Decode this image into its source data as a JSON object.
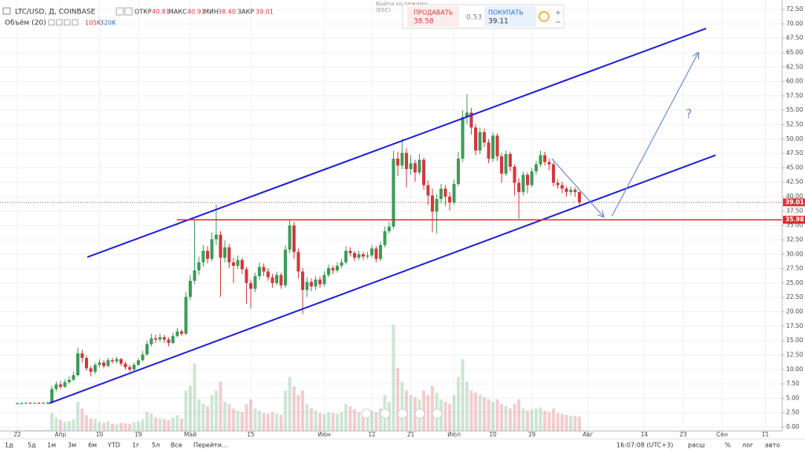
{
  "header": {
    "symbol": "LTC/USD, Д, COINBASE",
    "ohlc": [
      {
        "label": "ОТКР",
        "value": "40.81"
      },
      {
        "label": "МАКС",
        "value": "40.91"
      },
      {
        "label": "МИН",
        "value": "38.40"
      },
      {
        "label": "ЗАКР",
        "value": "39.01"
      }
    ],
    "volume_legend": {
      "label": "Объём (20)",
      "ma": "105K",
      "volume": "320K"
    }
  },
  "trade": {
    "tooltip": [
      "Выйти из режима",
      "(ESC)"
    ],
    "sell_label": "ПРОДАВАТЬ",
    "sell": "38.58",
    "spread": "0.53",
    "buy_label": "ПОКУПАТЬ",
    "buy": "39.11"
  },
  "toolbar": {
    "ranges": [
      "1д",
      "5д",
      "1м",
      "3м",
      "6м",
      "YTD",
      "1г",
      "5л",
      "Все",
      "Перейти..."
    ],
    "clock": "16:07:08 (UTC+3)",
    "options": [
      "расш",
      "%",
      "лог",
      "авто"
    ]
  },
  "chart_data": {
    "type": "candlestick",
    "up_color": "#3d9b57",
    "down_color": "#d2393c",
    "grid": true,
    "xlim": [
      -4,
      176.9
    ],
    "ylim": [
      -0.68,
      74.14
    ],
    "xticks": [
      {
        "value": 0,
        "label": "22"
      },
      {
        "value": 10,
        "label": "Апр"
      },
      {
        "value": 19,
        "label": "10"
      },
      {
        "value": 28,
        "label": "19"
      },
      {
        "value": 40,
        "label": "Май"
      },
      {
        "value": 54,
        "label": "15"
      },
      {
        "value": 71,
        "label": "Июн"
      },
      {
        "value": 82,
        "label": "12"
      },
      {
        "value": 91,
        "label": "21"
      },
      {
        "value": 101,
        "label": "Июл"
      },
      {
        "value": 110,
        "label": "10"
      },
      {
        "value": 119,
        "label": "19"
      },
      {
        "value": 132,
        "label": "Авг"
      },
      {
        "value": 145,
        "label": "14"
      },
      {
        "value": 154,
        "label": "23"
      },
      {
        "value": 163,
        "label": "Сен"
      },
      {
        "value": 173,
        "label": "11"
      }
    ],
    "yticks": [
      {
        "value": 0,
        "label": "0.00"
      },
      {
        "value": 2.5,
        "label": "2.50"
      },
      {
        "value": 5,
        "label": "5.00"
      },
      {
        "value": 7.5,
        "label": "7.50"
      },
      {
        "value": 10,
        "label": "10.00"
      },
      {
        "value": 12.5,
        "label": "12.50"
      },
      {
        "value": 15,
        "label": "15.00"
      },
      {
        "value": 17.5,
        "label": "17.50"
      },
      {
        "value": 20,
        "label": "20.00"
      },
      {
        "value": 22.5,
        "label": "22.50"
      },
      {
        "value": 25,
        "label": "25.00"
      },
      {
        "value": 27.5,
        "label": "27.50"
      },
      {
        "value": 30,
        "label": "30.00"
      },
      {
        "value": 32.5,
        "label": "32.50"
      },
      {
        "value": 35,
        "label": "35.00"
      },
      {
        "value": 37.5,
        "label": "37.50"
      },
      {
        "value": 40,
        "label": "40.00"
      },
      {
        "value": 42.5,
        "label": "42.50"
      },
      {
        "value": 45,
        "label": "45.00"
      },
      {
        "value": 47.5,
        "label": "47.50"
      },
      {
        "value": 50,
        "label": "50.00"
      },
      {
        "value": 52.5,
        "label": "52.50"
      },
      {
        "value": 55,
        "label": "55.00"
      },
      {
        "value": 57.5,
        "label": "57.50"
      },
      {
        "value": 60,
        "label": "60.00"
      },
      {
        "value": 62.5,
        "label": "62.50"
      },
      {
        "value": 65,
        "label": "65.00"
      },
      {
        "value": 67.5,
        "label": "67.50"
      },
      {
        "value": 70,
        "label": "70.00"
      },
      {
        "value": 72.5,
        "label": "72.50"
      }
    ],
    "x": [
      0,
      1,
      2,
      3,
      4,
      5,
      6,
      7,
      8,
      9,
      10,
      11,
      12,
      13,
      14,
      15,
      16,
      17,
      18,
      19,
      20,
      21,
      22,
      23,
      24,
      25,
      26,
      27,
      28,
      29,
      30,
      31,
      32,
      33,
      34,
      35,
      36,
      37,
      38,
      39,
      40,
      41,
      42,
      43,
      44,
      45,
      46,
      47,
      48,
      49,
      50,
      51,
      52,
      53,
      54,
      55,
      56,
      57,
      58,
      59,
      60,
      61,
      62,
      63,
      64,
      65,
      66,
      67,
      68,
      69,
      70,
      71,
      72,
      73,
      74,
      75,
      76,
      77,
      78,
      79,
      80,
      81,
      82,
      83,
      84,
      85,
      86,
      87,
      88,
      89,
      90,
      91,
      92,
      93,
      94,
      95,
      96,
      97,
      98,
      99,
      100,
      101,
      102,
      103,
      104,
      105,
      106,
      107,
      108,
      109,
      110,
      111,
      112,
      113,
      114,
      115,
      116,
      117,
      118,
      119,
      120,
      121,
      122,
      123,
      124,
      125,
      126,
      127,
      128,
      129,
      130
    ],
    "open": [
      4.1,
      4.1,
      4.1,
      4.2,
      4.1,
      4.2,
      4.1,
      4.2,
      4.2,
      6.6,
      7.4,
      7.0,
      7.8,
      8.2,
      9.0,
      12.8,
      12.0,
      10.2,
      9.6,
      10.8,
      11.2,
      10.6,
      11.6,
      11.4,
      11.8,
      11.0,
      10.4,
      10.0,
      10.8,
      11.6,
      12.6,
      14.4,
      15.4,
      15.2,
      15.6,
      15.2,
      14.6,
      15.8,
      16.6,
      16.2,
      22.6,
      25.4,
      27.2,
      28.6,
      30.6,
      29.2,
      32.6,
      33.4,
      29.4,
      31.2,
      28.6,
      28.0,
      29.0,
      27.4,
      25.0,
      24.0,
      26.2,
      27.8,
      27.0,
      26.0,
      25.0,
      26.4,
      24.6,
      30.8,
      35.0,
      30.4,
      27.0,
      23.8,
      25.2,
      24.4,
      25.6,
      24.8,
      26.4,
      27.6,
      27.2,
      28.0,
      28.6,
      30.6,
      30.2,
      29.4,
      30.0,
      29.6,
      29.8,
      31.0,
      29.2,
      31.6,
      34.0,
      34.8,
      46.6,
      45.4,
      47.6,
      44.8,
      45.8,
      44.2,
      46.4,
      42.0,
      40.2,
      37.4,
      39.6,
      41.4,
      40.0,
      39.0,
      42.2,
      46.6,
      53.8,
      54.6,
      52.0,
      48.0,
      51.2,
      49.4,
      46.6,
      50.6,
      47.0,
      44.0,
      47.4,
      45.2,
      42.4,
      40.8,
      43.8,
      42.0,
      44.4,
      45.6,
      47.2,
      46.0,
      45.6,
      42.4,
      42.0,
      41.4,
      40.8,
      41.2,
      40.81
    ],
    "high": [
      4.3,
      4.3,
      4.3,
      4.3,
      4.3,
      4.3,
      4.3,
      4.4,
      7.2,
      7.9,
      8.0,
      8.3,
      8.8,
      9.6,
      13.8,
      13.4,
      12.4,
      10.6,
      11.2,
      11.8,
      11.6,
      12.0,
      12.0,
      12.2,
      12.0,
      11.4,
      10.8,
      11.2,
      12.0,
      13.2,
      15.0,
      16.2,
      16.0,
      16.2,
      16.0,
      15.6,
      16.4,
      17.2,
      17.0,
      23.4,
      26.4,
      36.0,
      29.6,
      31.6,
      31.4,
      33.8,
      38.6,
      34.0,
      32.4,
      31.8,
      29.4,
      29.8,
      29.4,
      27.8,
      25.6,
      26.8,
      28.6,
      28.4,
      27.6,
      26.6,
      27.0,
      26.8,
      31.6,
      36.0,
      35.6,
      31.0,
      27.6,
      26.0,
      25.8,
      26.2,
      26.2,
      27.0,
      28.2,
      28.0,
      28.6,
      29.2,
      31.4,
      31.2,
      30.6,
      30.6,
      30.4,
      30.4,
      31.6,
      31.4,
      32.2,
      34.8,
      35.6,
      48.0,
      47.8,
      50.0,
      48.4,
      47.2,
      46.4,
      47.4,
      46.8,
      42.8,
      41.4,
      40.4,
      42.2,
      42.0,
      40.8,
      43.0,
      47.8,
      55.0,
      57.8,
      55.4,
      52.6,
      52.0,
      51.8,
      50.0,
      51.2,
      51.0,
      47.6,
      48.0,
      47.8,
      45.6,
      43.2,
      44.4,
      44.2,
      45.0,
      46.2,
      48.0,
      47.8,
      46.6,
      46.0,
      43.0,
      42.6,
      41.8,
      41.8,
      41.6,
      40.91
    ],
    "low": [
      4.0,
      4.0,
      4.0,
      4.0,
      4.0,
      4.0,
      4.0,
      4.0,
      4.1,
      6.2,
      6.6,
      6.8,
      7.5,
      8.0,
      8.8,
      11.2,
      9.8,
      8.8,
      9.2,
      10.4,
      10.2,
      10.4,
      11.0,
      11.0,
      10.6,
      10.0,
      9.6,
      9.8,
      10.6,
      11.4,
      12.4,
      14.0,
      14.6,
      14.8,
      14.6,
      14.0,
      14.4,
      15.6,
      15.8,
      16.0,
      22.0,
      24.8,
      26.4,
      27.8,
      28.4,
      28.8,
      31.6,
      22.6,
      28.6,
      27.6,
      25.0,
      27.4,
      26.6,
      21.4,
      20.6,
      23.4,
      25.6,
      26.2,
      25.4,
      24.2,
      24.6,
      24.0,
      24.2,
      30.2,
      29.2,
      25.8,
      19.6,
      22.6,
      23.6,
      23.8,
      24.2,
      24.4,
      26.0,
      26.6,
      26.8,
      27.6,
      28.2,
      29.6,
      28.8,
      29.0,
      29.0,
      29.2,
      29.4,
      28.6,
      28.8,
      31.2,
      33.6,
      34.4,
      43.6,
      44.8,
      41.6,
      43.8,
      42.6,
      43.8,
      41.2,
      38.6,
      33.8,
      33.6,
      38.8,
      38.4,
      37.6,
      38.6,
      41.8,
      46.0,
      52.6,
      50.8,
      47.2,
      47.4,
      48.6,
      45.8,
      46.0,
      46.2,
      42.4,
      43.6,
      44.4,
      40.2,
      36.2,
      40.2,
      40.6,
      41.6,
      43.8,
      45.2,
      45.4,
      44.6,
      41.8,
      41.4,
      40.6,
      40.0,
      40.2,
      40.0,
      38.4
    ],
    "close": [
      4.1,
      4.1,
      4.2,
      4.1,
      4.2,
      4.1,
      4.2,
      4.2,
      6.6,
      7.4,
      7.0,
      7.8,
      8.2,
      9.0,
      12.8,
      12.0,
      10.2,
      9.6,
      10.8,
      11.2,
      10.6,
      11.6,
      11.4,
      11.8,
      11.0,
      10.4,
      10.0,
      10.8,
      11.6,
      12.6,
      14.4,
      15.4,
      15.2,
      15.6,
      15.2,
      14.6,
      15.8,
      16.6,
      16.2,
      22.6,
      25.4,
      27.2,
      28.6,
      30.6,
      29.2,
      32.6,
      33.4,
      29.4,
      31.2,
      28.6,
      28.0,
      29.0,
      27.4,
      25.0,
      24.0,
      26.2,
      27.8,
      27.0,
      26.0,
      25.0,
      26.4,
      24.6,
      30.8,
      35.0,
      30.4,
      27.0,
      23.8,
      25.2,
      24.4,
      25.6,
      24.8,
      26.4,
      27.6,
      27.2,
      28.0,
      28.6,
      30.6,
      30.2,
      29.4,
      30.0,
      29.6,
      29.8,
      31.0,
      29.2,
      31.6,
      34.0,
      34.8,
      46.6,
      45.4,
      47.6,
      44.8,
      45.8,
      44.2,
      46.4,
      42.0,
      40.2,
      37.4,
      39.6,
      41.4,
      40.0,
      39.0,
      42.2,
      46.6,
      53.8,
      54.6,
      52.0,
      48.0,
      51.2,
      49.4,
      46.6,
      50.6,
      47.0,
      44.0,
      47.4,
      45.2,
      42.4,
      40.8,
      43.8,
      42.0,
      44.4,
      45.6,
      47.2,
      46.0,
      45.6,
      42.4,
      42.0,
      41.4,
      40.8,
      41.2,
      40.8,
      39.01
    ],
    "volume": [
      20,
      15,
      18,
      22,
      20,
      18,
      25,
      30,
      400,
      300,
      250,
      200,
      220,
      260,
      650,
      500,
      350,
      280,
      260,
      200,
      180,
      220,
      160,
      150,
      180,
      170,
      160,
      190,
      210,
      260,
      420,
      380,
      300,
      280,
      260,
      240,
      300,
      350,
      280,
      900,
      1000,
      1500,
      700,
      600,
      550,
      800,
      900,
      1100,
      650,
      600,
      500,
      450,
      420,
      600,
      700,
      500,
      450,
      400,
      380,
      420,
      380,
      360,
      900,
      1200,
      1000,
      800,
      900,
      600,
      500,
      450,
      400,
      380,
      420,
      400,
      380,
      420,
      600,
      550,
      480,
      420,
      400,
      380,
      450,
      420,
      500,
      800,
      650,
      2360,
      1400,
      1100,
      900,
      800,
      750,
      700,
      900,
      800,
      1000,
      850,
      700,
      650,
      600,
      800,
      1200,
      1600,
      1100,
      900,
      850,
      800,
      750,
      700,
      650,
      700,
      600,
      550,
      500,
      600,
      700,
      500,
      450,
      480,
      500,
      520,
      450,
      420,
      500,
      400,
      380,
      360,
      340,
      330,
      320
    ],
    "shapes": [
      {
        "shape": "line",
        "color": "#1f1fd6",
        "x": [
          16.2,
          159.3
        ],
        "y": [
          29.5,
          69.2
        ]
      },
      {
        "shape": "line",
        "color": "#1f1fd6",
        "x": [
          7.3,
          161.5
        ],
        "y": [
          4.1,
          47.2
        ]
      },
      {
        "shape": "hline",
        "color": "#e02424",
        "x": [
          36.9,
          176.9
        ],
        "y": [
          35.98,
          35.98
        ]
      },
      {
        "shape": "arrow",
        "color": "#6d8fcf",
        "x": [
          123.6,
          135.6
        ],
        "y": [
          46.6,
          36.5
        ]
      },
      {
        "shape": "arrow",
        "color": "#6d8fcf",
        "x": [
          137.5,
          157.5
        ],
        "y": [
          36.6,
          65.0
        ]
      },
      {
        "shape": "text",
        "color": "#6d8fcf",
        "text": "?",
        "x": [
          155.3
        ],
        "y": [
          54.3
        ]
      }
    ]
  }
}
